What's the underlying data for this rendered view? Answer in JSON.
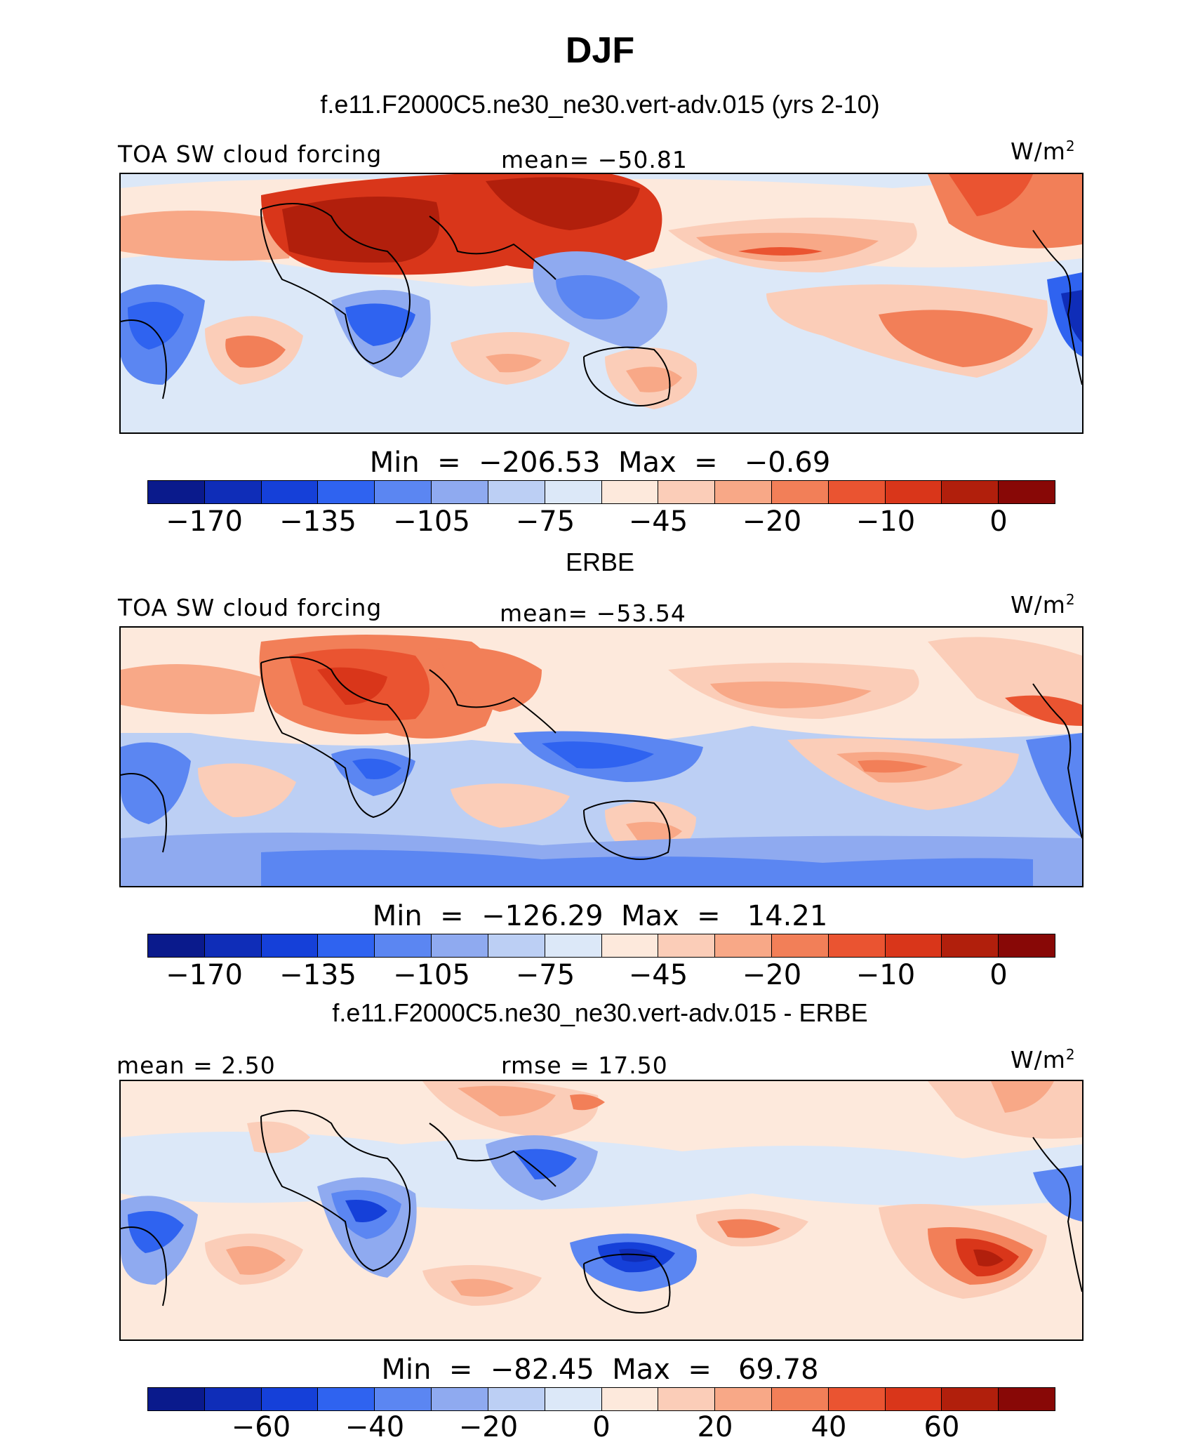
{
  "title": "DJF",
  "palette": [
    "#0a1a8c",
    "#0f2db8",
    "#1540d9",
    "#2f63f0",
    "#5b86f2",
    "#8faaf0",
    "#bccff4",
    "#dce8f8",
    "#fde9dc",
    "#fbcdb8",
    "#f8a887",
    "#f27f58",
    "#ea5431",
    "#d9361a",
    "#b11f0c",
    "#880806"
  ],
  "panel1": {
    "subtitle": "f.e11.F2000C5.ne30_ne30.vert-adv.015 (yrs 2-10)",
    "left": "TOA SW cloud forcing",
    "center": "mean= −50.81",
    "unit": "W/m",
    "unit_sup": "2",
    "minmax": "Min  =  −206.53  Max  =   −0.69",
    "ticks": [
      "−170",
      "−135",
      "−105",
      "−75",
      "−45",
      "−20",
      "−10",
      "0"
    ]
  },
  "panel2": {
    "subtitle": "ERBE",
    "left": "TOA SW cloud forcing",
    "center": "mean= −53.54",
    "unit": "W/m",
    "unit_sup": "2",
    "minmax": "Min  =  −126.29  Max  =   14.21",
    "ticks": [
      "−170",
      "−135",
      "−105",
      "−75",
      "−45",
      "−20",
      "−10",
      "0"
    ]
  },
  "panel3": {
    "subtitle": "f.e11.F2000C5.ne30_ne30.vert-adv.015 - ERBE",
    "left": "mean  =   2.50",
    "center": "rmse  =   17.50",
    "unit": "W/m",
    "unit_sup": "2",
    "minmax": "Min  =  −82.45  Max  =   69.78",
    "ticks": [
      "−60",
      "−40",
      "−20",
      "0",
      "20",
      "40",
      "60"
    ]
  }
}
